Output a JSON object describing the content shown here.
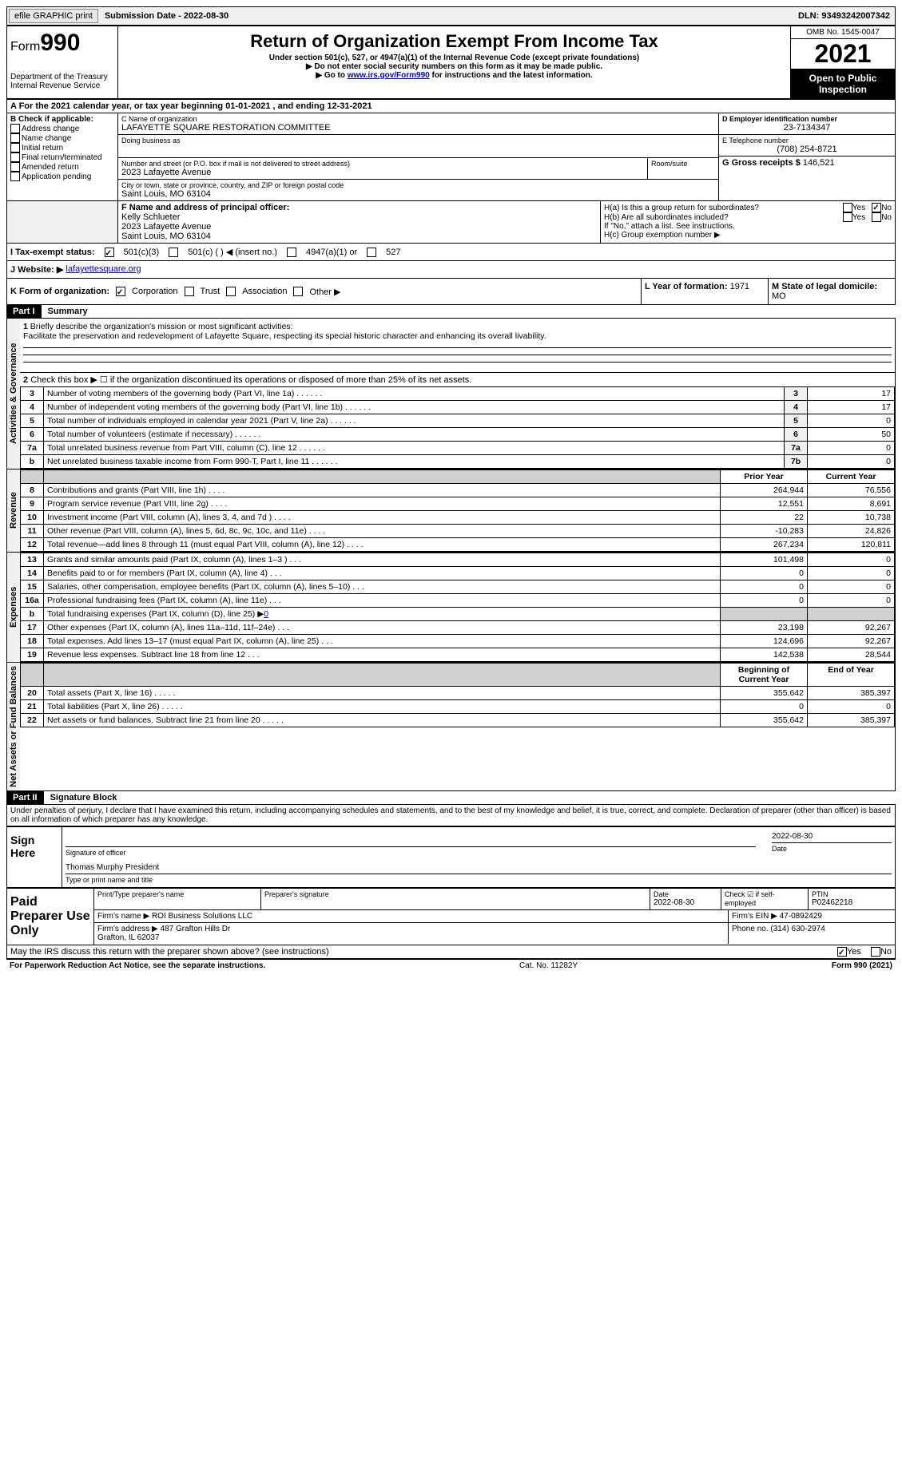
{
  "header": {
    "efile_btn": "efile GRAPHIC print",
    "submission_label": "Submission Date - 2022-08-30",
    "dln": "DLN: 93493242007342"
  },
  "title": {
    "form_word": "Form",
    "form_number": "990",
    "dept": "Department of the Treasury\nInternal Revenue Service",
    "main": "Return of Organization Exempt From Income Tax",
    "sub1": "Under section 501(c), 527, or 4947(a)(1) of the Internal Revenue Code (except private foundations)",
    "sub2": "▶ Do not enter social security numbers on this form as it may be made public.",
    "sub3_pre": "▶ Go to ",
    "sub3_link": "www.irs.gov/Form990",
    "sub3_post": " for instructions and the latest information.",
    "omb": "OMB No. 1545-0047",
    "year": "2021",
    "open": "Open to Public Inspection"
  },
  "rowA": "A For the 2021 calendar year, or tax year beginning 01-01-2021    , and ending 12-31-2021",
  "B": {
    "label": "B Check if applicable:",
    "items": [
      "Address change",
      "Name change",
      "Initial return",
      "Final return/terminated",
      "Amended return",
      "Application pending"
    ]
  },
  "C": {
    "name_label": "C Name of organization",
    "name": "LAFAYETTE SQUARE RESTORATION COMMITTEE",
    "dba_label": "Doing business as",
    "dba": "",
    "street_label": "Number and street (or P.O. box if mail is not delivered to street address)",
    "street": "2023 Lafayette Avenue",
    "room_label": "Room/suite",
    "city_label": "City or town, state or province, country, and ZIP or foreign postal code",
    "city": "Saint Louis, MO  63104"
  },
  "D": {
    "label": "D Employer identification number",
    "value": "23-7134347"
  },
  "E": {
    "label": "E Telephone number",
    "value": "(708) 254-8721"
  },
  "G": {
    "label": "G Gross receipts $",
    "value": "146,521"
  },
  "F": {
    "label": "F Name and address of principal officer:",
    "name": "Kelly Schlueter",
    "street": "2023 Lafayette Avenue",
    "city": "Saint Louis, MO  63104"
  },
  "H": {
    "a": "H(a)  Is this a group return for subordinates?",
    "b": "H(b)  Are all subordinates included?",
    "b_note": "If \"No,\" attach a list. See instructions.",
    "c": "H(c)  Group exemption number ▶",
    "yes": "Yes",
    "no": "No"
  },
  "I": {
    "label": "I   Tax-exempt status:",
    "opt1": "501(c)(3)",
    "opt2": "501(c) (  ) ◀ (insert no.)",
    "opt3": "4947(a)(1) or",
    "opt4": "527"
  },
  "J": {
    "label": "J   Website: ▶",
    "value": "lafayettesquare.org"
  },
  "K": {
    "label": "K Form of organization:",
    "opts": [
      "Corporation",
      "Trust",
      "Association",
      "Other ▶"
    ]
  },
  "L": {
    "label": "L Year of formation:",
    "value": "1971"
  },
  "M": {
    "label": "M State of legal domicile:",
    "value": "MO"
  },
  "part1": {
    "num": "Part I",
    "title": "Summary"
  },
  "sections": {
    "activities": "Activities & Governance",
    "revenue": "Revenue",
    "expenses": "Expenses",
    "netassets": "Net Assets or Fund Balances"
  },
  "line1": {
    "num": "1",
    "label": "Briefly describe the organization's mission or most significant activities:",
    "text": "Facilitate the preservation and redevelopment of Lafayette Square, respecting its special historic character and enhancing its overall livability."
  },
  "line2": {
    "num": "2",
    "text": "Check this box ▶ ☐ if the organization discontinued its operations or disposed of more than 25% of its net assets."
  },
  "lines_gov": [
    {
      "n": "3",
      "desc": "Number of voting members of the governing body (Part VI, line 1a)",
      "box": "3",
      "val": "17"
    },
    {
      "n": "4",
      "desc": "Number of independent voting members of the governing body (Part VI, line 1b)",
      "box": "4",
      "val": "17"
    },
    {
      "n": "5",
      "desc": "Total number of individuals employed in calendar year 2021 (Part V, line 2a)",
      "box": "5",
      "val": "0"
    },
    {
      "n": "6",
      "desc": "Total number of volunteers (estimate if necessary)",
      "box": "6",
      "val": "50"
    },
    {
      "n": "7a",
      "desc": "Total unrelated business revenue from Part VIII, column (C), line 12",
      "box": "7a",
      "val": "0"
    },
    {
      "n": "b",
      "desc": "Net unrelated business taxable income from Form 990-T, Part I, line 11",
      "box": "7b",
      "val": "0"
    }
  ],
  "col_headers": {
    "prior": "Prior Year",
    "current": "Current Year"
  },
  "lines_rev": [
    {
      "n": "8",
      "desc": "Contributions and grants (Part VIII, line 1h)",
      "p": "264,944",
      "c": "76,556"
    },
    {
      "n": "9",
      "desc": "Program service revenue (Part VIII, line 2g)",
      "p": "12,551",
      "c": "8,691"
    },
    {
      "n": "10",
      "desc": "Investment income (Part VIII, column (A), lines 3, 4, and 7d )",
      "p": "22",
      "c": "10,738"
    },
    {
      "n": "11",
      "desc": "Other revenue (Part VIII, column (A), lines 5, 6d, 8c, 9c, 10c, and 11e)",
      "p": "-10,283",
      "c": "24,826"
    },
    {
      "n": "12",
      "desc": "Total revenue—add lines 8 through 11 (must equal Part VIII, column (A), line 12)",
      "p": "267,234",
      "c": "120,811"
    }
  ],
  "lines_exp": [
    {
      "n": "13",
      "desc": "Grants and similar amounts paid (Part IX, column (A), lines 1–3 )",
      "p": "101,498",
      "c": "0"
    },
    {
      "n": "14",
      "desc": "Benefits paid to or for members (Part IX, column (A), line 4)",
      "p": "0",
      "c": "0"
    },
    {
      "n": "15",
      "desc": "Salaries, other compensation, employee benefits (Part IX, column (A), lines 5–10)",
      "p": "0",
      "c": "0"
    },
    {
      "n": "16a",
      "desc": "Professional fundraising fees (Part IX, column (A), line 11e)",
      "p": "0",
      "c": "0"
    }
  ],
  "line16b": {
    "n": "b",
    "desc": "Total fundraising expenses (Part IX, column (D), line 25) ▶",
    "val": "0"
  },
  "lines_exp2": [
    {
      "n": "17",
      "desc": "Other expenses (Part IX, column (A), lines 11a–11d, 11f–24e)",
      "p": "23,198",
      "c": "92,267"
    },
    {
      "n": "18",
      "desc": "Total expenses. Add lines 13–17 (must equal Part IX, column (A), line 25)",
      "p": "124,696",
      "c": "92,267"
    },
    {
      "n": "19",
      "desc": "Revenue less expenses. Subtract line 18 from line 12",
      "p": "142,538",
      "c": "28,544"
    }
  ],
  "col_headers2": {
    "begin": "Beginning of Current Year",
    "end": "End of Year"
  },
  "lines_net": [
    {
      "n": "20",
      "desc": "Total assets (Part X, line 16)",
      "p": "355,642",
      "c": "385,397"
    },
    {
      "n": "21",
      "desc": "Total liabilities (Part X, line 26)",
      "p": "0",
      "c": "0"
    },
    {
      "n": "22",
      "desc": "Net assets or fund balances. Subtract line 21 from line 20",
      "p": "355,642",
      "c": "385,397"
    }
  ],
  "part2": {
    "num": "Part II",
    "title": "Signature Block"
  },
  "penalties": "Under penalties of perjury, I declare that I have examined this return, including accompanying schedules and statements, and to the best of my knowledge and belief, it is true, correct, and complete. Declaration of preparer (other than officer) is based on all information of which preparer has any knowledge.",
  "sign": {
    "label": "Sign Here",
    "sig_label": "Signature of officer",
    "date": "2022-08-30",
    "date_label": "Date",
    "name": "Thomas Murphy  President",
    "name_label": "Type or print name and title"
  },
  "paid": {
    "label": "Paid Preparer Use Only",
    "h_name": "Print/Type preparer's name",
    "h_sig": "Preparer's signature",
    "h_date": "Date",
    "date": "2022-08-30",
    "check_label": "Check ☑ if self-employed",
    "ptin_label": "PTIN",
    "ptin": "P02462218",
    "firm_name_label": "Firm's name   ▶",
    "firm_name": "ROI Business Solutions LLC",
    "firm_ein_label": "Firm's EIN ▶",
    "firm_ein": "47-0892429",
    "firm_addr_label": "Firm's address ▶",
    "firm_addr": "487 Grafton Hills Dr\nGrafton, IL  62037",
    "phone_label": "Phone no.",
    "phone": "(314) 630-2974"
  },
  "discuss": "May the IRS discuss this return with the preparer shown above? (see instructions)",
  "footer": {
    "pra": "For Paperwork Reduction Act Notice, see the separate instructions.",
    "cat": "Cat. No. 11282Y",
    "rev": "Form 990 (2021)"
  }
}
